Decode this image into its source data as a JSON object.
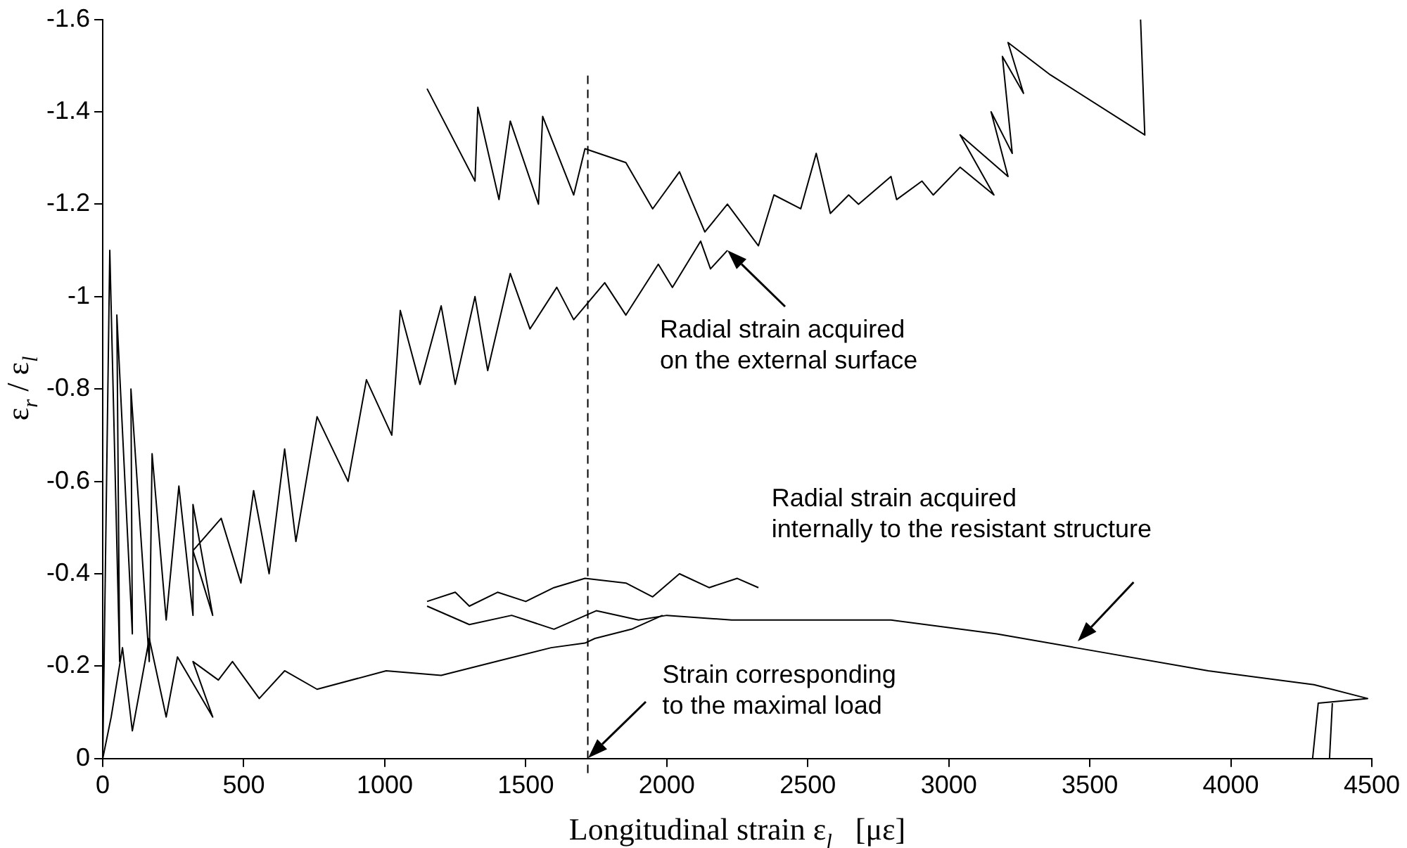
{
  "chart_data": {
    "type": "line",
    "xlabel": "Longitudinal strain ε$_{l}$   [με]",
    "ylabel": "ε$_{r}$ / ε$_{l}$",
    "xlim": [
      0,
      4500
    ],
    "xticks": [
      0,
      500,
      1000,
      1500,
      2000,
      2500,
      3000,
      3500,
      4000,
      4500
    ],
    "ylim": [
      0,
      -1.6
    ],
    "yticks": [
      0,
      -0.2,
      -0.4,
      -0.6,
      -0.8,
      -1,
      -1.2,
      -1.4,
      -1.6
    ],
    "legend": false,
    "marker": "none",
    "line_style": "solid",
    "series": [
      {
        "color": "#000000",
        "x": [
          0,
          25,
          60,
          50,
          105,
          100,
          165,
          175,
          225,
          270,
          320,
          320,
          390,
          320,
          420,
          490,
          535,
          590,
          645,
          685,
          760,
          870,
          935,
          1025,
          1055,
          1125,
          1200,
          1250,
          1320,
          1365,
          1445,
          1515,
          1610,
          1670,
          1780,
          1855,
          1970,
          2020,
          2120,
          2155,
          2215
        ],
        "values": [
          0,
          -1.1,
          -0.21,
          -0.96,
          -0.27,
          -0.8,
          -0.21,
          -0.66,
          -0.3,
          -0.59,
          -0.31,
          -0.55,
          -0.31,
          -0.45,
          -0.52,
          -0.38,
          -0.58,
          -0.4,
          -0.67,
          -0.47,
          -0.74,
          -0.6,
          -0.82,
          -0.7,
          -0.97,
          -0.81,
          -0.98,
          -0.81,
          -1,
          -0.84,
          -1.05,
          -0.93,
          -1.02,
          -0.95,
          -1.03,
          -0.96,
          -1.07,
          -1.02,
          -1.12,
          -1.06,
          -1.1
        ]
      },
      {
        "color": "#000000",
        "x": [
          1150,
          1320,
          1330,
          1405,
          1445,
          1545,
          1560,
          1670,
          1710,
          1855,
          1950,
          2045,
          2135,
          2215,
          2325,
          2380,
          2475,
          2530,
          2580,
          2645,
          2680,
          2795,
          2815,
          2905,
          2945,
          3040,
          3160,
          3040,
          3210,
          3150,
          3225,
          3190,
          3265,
          3210,
          3360,
          3695,
          3680
        ],
        "values": [
          -1.45,
          -1.25,
          -1.41,
          -1.21,
          -1.38,
          -1.2,
          -1.39,
          -1.22,
          -1.32,
          -1.29,
          -1.19,
          -1.27,
          -1.14,
          -1.2,
          -1.11,
          -1.22,
          -1.19,
          -1.31,
          -1.18,
          -1.22,
          -1.2,
          -1.26,
          -1.21,
          -1.25,
          -1.22,
          -1.28,
          -1.22,
          -1.35,
          -1.26,
          -1.4,
          -1.31,
          -1.52,
          -1.44,
          -1.55,
          -1.48,
          -1.35,
          -1.6
        ]
      },
      {
        "color": "#000000",
        "x": [
          0,
          30,
          70,
          105,
          165,
          225,
          265,
          390,
          320,
          410,
          460,
          555,
          645,
          760,
          1005,
          1200,
          1395,
          1590,
          1710,
          1745,
          1875,
          1985
        ],
        "values": [
          0,
          -0.09,
          -0.24,
          -0.06,
          -0.26,
          -0.09,
          -0.22,
          -0.09,
          -0.21,
          -0.17,
          -0.21,
          -0.13,
          -0.19,
          -0.15,
          -0.19,
          -0.18,
          -0.21,
          -0.24,
          -0.25,
          -0.26,
          -0.28,
          -0.31
        ]
      },
      {
        "color": "#000000",
        "x": [
          1150,
          1250,
          1300,
          1400,
          1500,
          1600,
          1710,
          1855,
          1950,
          2045,
          2150,
          2250,
          2325
        ],
        "values": [
          -0.34,
          -0.36,
          -0.33,
          -0.36,
          -0.34,
          -0.37,
          -0.39,
          -0.38,
          -0.35,
          -0.4,
          -0.37,
          -0.39,
          -0.37
        ]
      },
      {
        "color": "#000000",
        "x": [
          1150,
          1300,
          1450,
          1600,
          1750,
          1900,
          2000,
          2230,
          2795,
          3170,
          3450,
          3920,
          4295,
          4485,
          4310,
          4290
        ],
        "values": [
          -0.33,
          -0.29,
          -0.31,
          -0.28,
          -0.32,
          -0.3,
          -0.31,
          -0.3,
          -0.3,
          -0.27,
          -0.24,
          -0.19,
          -0.16,
          -0.13,
          -0.12,
          0
        ]
      },
      {
        "color": "#000000",
        "x": [
          4360,
          4350
        ],
        "values": [
          -0.12,
          0
        ]
      }
    ],
    "ref_lines": [
      {
        "axis": "x",
        "value": 1720,
        "line_style": "dashed",
        "color": "#000000",
        "label": "Strain corresponding\nto the maximal load"
      }
    ],
    "annotations": [
      {
        "text": "Radial strain acquired\non the external surface",
        "x": 2215,
        "y": -1.1
      },
      "Radial strain acquired\ninternally to the resistant structure"
    ]
  }
}
